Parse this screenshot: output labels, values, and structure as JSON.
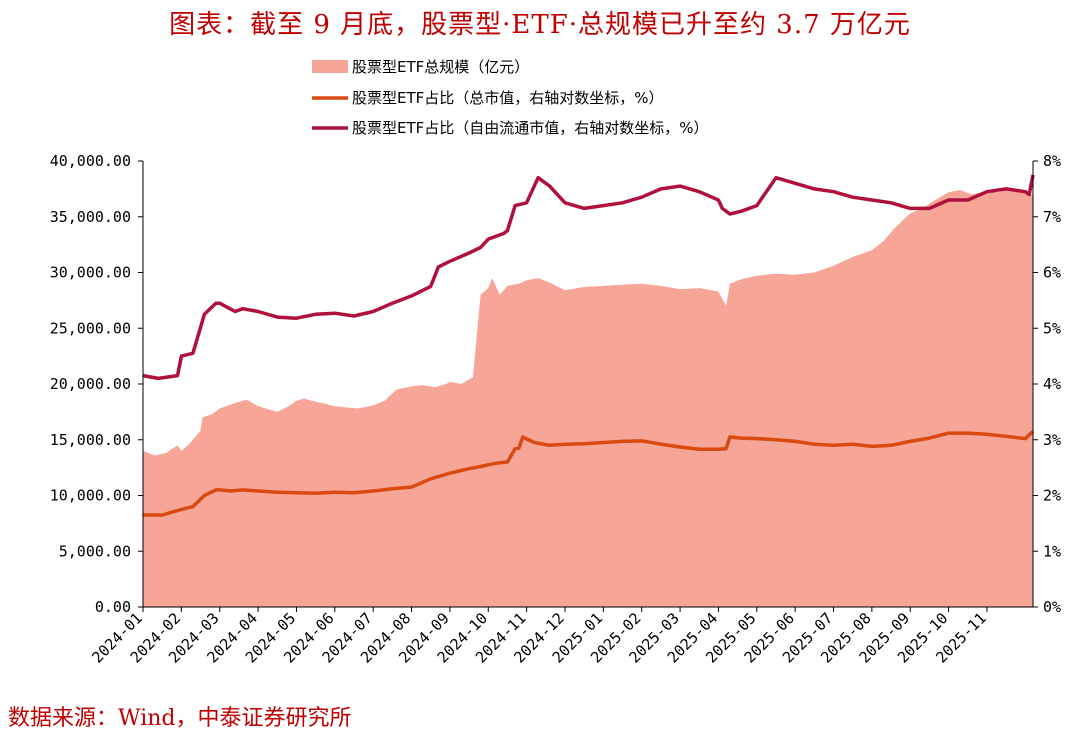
{
  "title": "图表：截至 9 月底，股票型·ETF·总规模已升至约 3.7 万亿元",
  "source": "数据来源：Wind，中泰证券研究所",
  "colors": {
    "area": "#f6a596",
    "total_line": "#d94a10",
    "free_float_line": "#b0103c",
    "title": "#c00000"
  },
  "chart_data": {
    "type": "area+line",
    "title": "图表：截至 9 月底，股票型·ETF·总规模已升至约 3.7 万亿元",
    "left_axis": {
      "ylim": [
        0,
        40000
      ],
      "ticks": [
        "0.00",
        "5,000.00",
        "10,000.00",
        "15,000.00",
        "20,000.00",
        "25,000.00",
        "30,000.00",
        "35,000.00",
        "40,000.00"
      ]
    },
    "right_axis": {
      "ylim": [
        0,
        8
      ],
      "ticks": [
        "0%",
        "1%",
        "2%",
        "3%",
        "4%",
        "5%",
        "6%",
        "7%",
        "8%"
      ]
    },
    "x_ticks": [
      "2024-01",
      "2024-02",
      "2024-03",
      "2024-04",
      "2024-05",
      "2024-06",
      "2024-07",
      "2024-08",
      "2024-09",
      "2024-10",
      "2024-11",
      "2024-12",
      "2025-01",
      "2025-02",
      "2025-03",
      "2025-04",
      "2025-05",
      "2025-06",
      "2025-07",
      "2025-08",
      "2025-09",
      "2025-10",
      "2025-11"
    ],
    "x_range": [
      0,
      23.2
    ],
    "legend": [
      {
        "label": "股票型ETF总规模（亿元）",
        "kind": "area"
      },
      {
        "label": "股票型ETF占比（总市值，右轴对数坐标，%）",
        "kind": "line"
      },
      {
        "label": "股票型ETF占比（自由流通市值，右轴对数坐标，%）",
        "kind": "line"
      }
    ],
    "series": [
      {
        "name": "股票型ETF总规模（亿元）",
        "axis": "left",
        "x": [
          0,
          0.3,
          0.6,
          0.9,
          1.0,
          1.2,
          1.5,
          1.55,
          1.8,
          2.0,
          2.4,
          2.7,
          3.0,
          3.3,
          3.5,
          3.8,
          4.0,
          4.2,
          4.5,
          4.8,
          5.0,
          5.3,
          5.6,
          5.9,
          6.0,
          6.3,
          6.6,
          6.9,
          7.0,
          7.3,
          7.6,
          7.9,
          8.0,
          8.3,
          8.6,
          8.8,
          9.0,
          9.1,
          9.3,
          9.5,
          9.8,
          10.0,
          10.3,
          10.6,
          11.0,
          11.5,
          12.0,
          12.5,
          13.0,
          13.5,
          14.0,
          14.5,
          15.0,
          15.2,
          15.3,
          15.6,
          16.0,
          16.5,
          17.0,
          17.5,
          18.0,
          18.5,
          19.0,
          19.3,
          19.6,
          20.0,
          20.3,
          20.6,
          21.0,
          21.3,
          21.6,
          22.0,
          22.3,
          22.6,
          22.9,
          23.1,
          23.2
        ],
        "values": [
          14000,
          13600,
          13800,
          14500,
          14000,
          14600,
          15800,
          17000,
          17300,
          17800,
          18300,
          18600,
          18000,
          17700,
          17500,
          18000,
          18500,
          18700,
          18400,
          18200,
          18000,
          17900,
          17800,
          18000,
          18100,
          18500,
          19500,
          19700,
          19800,
          19900,
          19700,
          20000,
          20200,
          20000,
          20600,
          28000,
          28600,
          29500,
          28000,
          28800,
          29000,
          29300,
          29500,
          29100,
          28400,
          28700,
          28800,
          28900,
          29000,
          28800,
          28500,
          28600,
          28300,
          27000,
          29000,
          29400,
          29700,
          29900,
          29800,
          30000,
          30600,
          31400,
          32000,
          32800,
          34000,
          35300,
          35700,
          36400,
          37200,
          37400,
          37000,
          37300,
          37200,
          37500,
          37200,
          37000,
          37000
        ]
      },
      {
        "name": "股票型ETF占比（总市值，右轴对数坐标，%）",
        "axis": "right",
        "x": [
          0,
          0.5,
          1.0,
          1.3,
          1.6,
          1.9,
          2.0,
          2.3,
          2.6,
          3.0,
          3.5,
          4.0,
          4.5,
          5.0,
          5.5,
          6.0,
          6.5,
          7.0,
          7.5,
          8.0,
          8.5,
          8.8,
          9.0,
          9.2,
          9.5,
          9.7,
          9.8,
          9.9,
          10.2,
          10.6,
          11.0,
          11.5,
          12.0,
          12.5,
          13.0,
          13.5,
          14.0,
          14.5,
          15.0,
          15.2,
          15.3,
          15.6,
          16.0,
          16.5,
          17.0,
          17.5,
          18.0,
          18.5,
          19.0,
          19.5,
          20.0,
          20.5,
          21.0,
          21.5,
          22.0,
          22.5,
          23.0,
          23.2
        ],
        "values": [
          1.65,
          1.65,
          1.75,
          1.8,
          2.0,
          2.1,
          2.1,
          2.08,
          2.1,
          2.08,
          2.06,
          2.05,
          2.04,
          2.06,
          2.05,
          2.08,
          2.12,
          2.15,
          2.3,
          2.4,
          2.48,
          2.52,
          2.55,
          2.58,
          2.6,
          2.84,
          2.85,
          3.05,
          2.95,
          2.9,
          2.92,
          2.93,
          2.95,
          2.97,
          2.98,
          2.92,
          2.87,
          2.83,
          2.83,
          2.84,
          3.05,
          3.03,
          3.02,
          3.0,
          2.97,
          2.92,
          2.9,
          2.92,
          2.88,
          2.9,
          2.97,
          3.03,
          3.12,
          3.12,
          3.1,
          3.06,
          3.02,
          3.15
        ]
      },
      {
        "name": "股票型ETF占比（自由流通市值，右轴对数坐标，%）",
        "axis": "right",
        "x": [
          0,
          0.4,
          0.9,
          1.0,
          1.3,
          1.6,
          1.9,
          2.0,
          2.4,
          2.6,
          3.0,
          3.5,
          4.0,
          4.5,
          5.0,
          5.5,
          6.0,
          6.5,
          7.0,
          7.5,
          7.7,
          8.0,
          8.5,
          8.8,
          9.0,
          9.4,
          9.5,
          9.7,
          10.0,
          10.3,
          10.6,
          11.0,
          11.5,
          12.0,
          12.5,
          13.0,
          13.5,
          14.0,
          14.5,
          15.0,
          15.1,
          15.3,
          15.6,
          16.0,
          16.5,
          17.0,
          17.5,
          18.0,
          18.5,
          19.0,
          19.5,
          20.0,
          20.5,
          21.0,
          21.5,
          22.0,
          22.5,
          23.0,
          23.1,
          23.2
        ],
        "values": [
          4.15,
          4.1,
          4.15,
          4.5,
          4.55,
          5.25,
          5.45,
          5.45,
          5.3,
          5.35,
          5.3,
          5.2,
          5.18,
          5.25,
          5.27,
          5.22,
          5.3,
          5.45,
          5.58,
          5.75,
          6.1,
          6.2,
          6.35,
          6.45,
          6.6,
          6.7,
          6.75,
          7.2,
          7.25,
          7.7,
          7.55,
          7.25,
          7.15,
          7.2,
          7.25,
          7.35,
          7.5,
          7.55,
          7.45,
          7.3,
          7.15,
          7.05,
          7.1,
          7.2,
          7.7,
          7.6,
          7.5,
          7.45,
          7.35,
          7.3,
          7.25,
          7.15,
          7.15,
          7.3,
          7.3,
          7.45,
          7.5,
          7.45,
          7.4,
          7.75
        ]
      }
    ]
  }
}
